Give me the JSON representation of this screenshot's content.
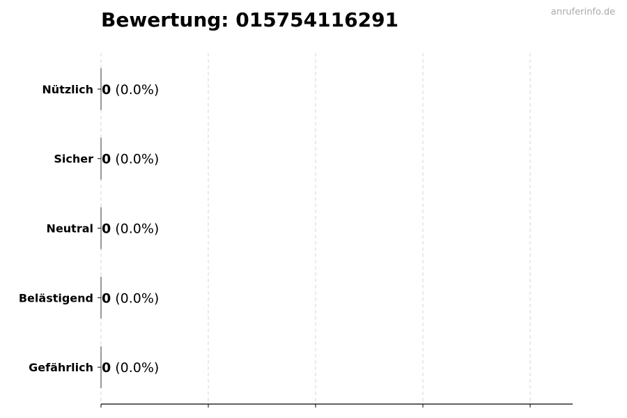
{
  "watermark": "anruferinfo.de",
  "chart_data": {
    "type": "bar",
    "orientation": "horizontal",
    "title": "Bewertung: 015754116291",
    "categories": [
      "Nützlich",
      "Sicher",
      "Neutral",
      "Belästigend",
      "Gefährlich"
    ],
    "values": [
      0,
      0,
      0,
      0,
      0
    ],
    "data_labels": [
      {
        "count": "0",
        "percent": "(0.0%)"
      },
      {
        "count": "0",
        "percent": "(0.0%)"
      },
      {
        "count": "0",
        "percent": "(0.0%)"
      },
      {
        "count": "0",
        "percent": "(0.0%)"
      },
      {
        "count": "0",
        "percent": "(0.0%)"
      }
    ],
    "xlabel": "",
    "ylabel": "",
    "x_ticks_count": 5,
    "x_tick_labels": [],
    "grid": "x dashed",
    "legend": "none"
  }
}
